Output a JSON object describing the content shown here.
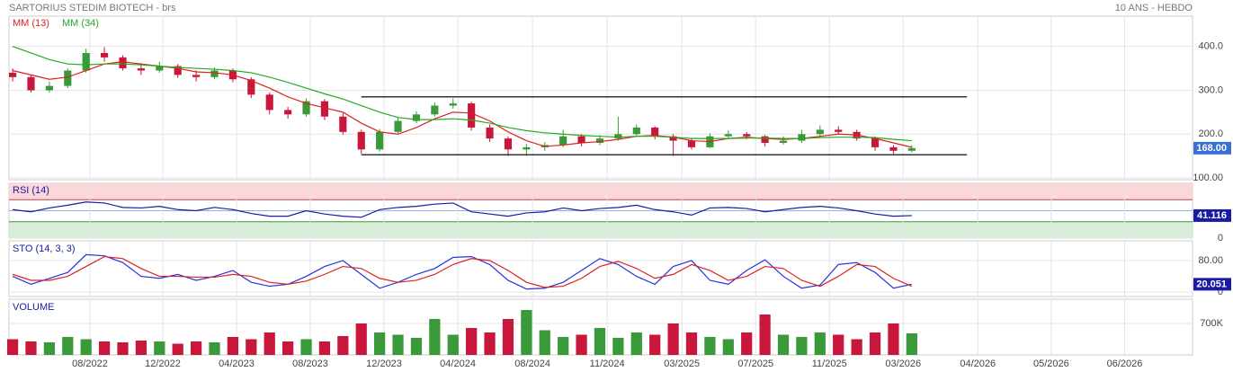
{
  "chart_data": [
    {
      "type": "candlestick",
      "title": "SARTORIUS STEDIM BIOTECH - brs",
      "subtitle": "10 ANS - HEBDO",
      "up_color": "#3a9a3a",
      "down_color": "#c8173a",
      "last_label": "168.00",
      "label_color": "#3a6fd8",
      "xlim": [
        -0.2,
        64.3
      ],
      "ylim": [
        96,
        469
      ],
      "yticks": [
        {
          "value": 400,
          "label": "400.0"
        },
        {
          "value": 300,
          "label": "300.0"
        },
        {
          "value": 200,
          "label": "200.0"
        },
        {
          "value": 100,
          "label": "100.00"
        }
      ],
      "ohlc": [
        [
          340,
          350,
          320,
          330
        ],
        [
          330,
          335,
          295,
          300
        ],
        [
          300,
          320,
          295,
          310
        ],
        [
          310,
          350,
          305,
          345
        ],
        [
          345,
          395,
          340,
          385
        ],
        [
          385,
          398,
          365,
          375
        ],
        [
          375,
          380,
          345,
          350
        ],
        [
          350,
          362,
          335,
          345
        ],
        [
          345,
          365,
          340,
          355
        ],
        [
          355,
          360,
          328,
          335
        ],
        [
          335,
          345,
          320,
          330
        ],
        [
          330,
          352,
          325,
          345
        ],
        [
          345,
          350,
          318,
          325
        ],
        [
          325,
          330,
          282,
          290
        ],
        [
          290,
          295,
          245,
          255
        ],
        [
          255,
          262,
          235,
          245
        ],
        [
          245,
          282,
          240,
          275
        ],
        [
          275,
          280,
          232,
          240
        ],
        [
          240,
          248,
          198,
          205
        ],
        [
          205,
          210,
          155,
          165
        ],
        [
          165,
          212,
          160,
          205
        ],
        [
          205,
          238,
          200,
          230
        ],
        [
          230,
          252,
          225,
          245
        ],
        [
          245,
          272,
          240,
          265
        ],
        [
          265,
          282,
          258,
          270
        ],
        [
          270,
          274,
          208,
          215
        ],
        [
          215,
          222,
          182,
          190
        ],
        [
          190,
          195,
          150,
          165
        ],
        [
          165,
          178,
          150,
          170
        ],
        [
          170,
          182,
          162,
          175
        ],
        [
          175,
          210,
          170,
          195
        ],
        [
          195,
          200,
          172,
          180
        ],
        [
          180,
          198,
          175,
          190
        ],
        [
          190,
          240,
          185,
          200
        ],
        [
          200,
          222,
          195,
          215
        ],
        [
          215,
          218,
          188,
          195
        ],
        [
          195,
          200,
          150,
          185
        ],
        [
          185,
          190,
          165,
          170
        ],
        [
          170,
          202,
          168,
          195
        ],
        [
          195,
          208,
          190,
          200
        ],
        [
          200,
          205,
          188,
          195
        ],
        [
          195,
          198,
          172,
          180
        ],
        [
          180,
          195,
          176,
          185
        ],
        [
          185,
          210,
          180,
          200
        ],
        [
          200,
          220,
          195,
          210
        ],
        [
          210,
          218,
          200,
          205
        ],
        [
          205,
          210,
          185,
          190
        ],
        [
          190,
          195,
          162,
          170
        ],
        [
          170,
          175,
          155,
          162
        ],
        [
          162,
          175,
          158,
          168
        ]
      ],
      "series": [
        {
          "name": "MM (13)",
          "color": "#e02020",
          "values": [
            345,
            335,
            325,
            330,
            345,
            360,
            365,
            360,
            355,
            350,
            342,
            340,
            335,
            322,
            305,
            285,
            270,
            260,
            250,
            225,
            205,
            200,
            215,
            235,
            250,
            248,
            230,
            205,
            185,
            172,
            175,
            180,
            183,
            188,
            195,
            197,
            193,
            185,
            183,
            190,
            193,
            190,
            188,
            190,
            195,
            200,
            198,
            190,
            180,
            170
          ]
        },
        {
          "name": "MM (34)",
          "color": "#22aa22",
          "values": [
            400,
            385,
            370,
            360,
            358,
            360,
            360,
            358,
            355,
            352,
            350,
            348,
            345,
            340,
            330,
            318,
            305,
            292,
            280,
            265,
            250,
            238,
            233,
            233,
            235,
            232,
            225,
            215,
            208,
            203,
            200,
            197,
            195,
            193,
            195,
            195,
            193,
            190,
            190,
            190,
            191,
            191,
            190,
            190,
            192,
            193,
            193,
            192,
            188,
            185
          ]
        }
      ],
      "lines": [
        {
          "color": "#333333",
          "x": [
            19,
            52
          ],
          "y": [
            285,
            285
          ]
        },
        {
          "color": "#333333",
          "x": [
            19,
            52
          ],
          "y": [
            153,
            153
          ]
        }
      ]
    },
    {
      "type": "line",
      "xlim": [
        -0.2,
        64.3
      ],
      "ylim": [
        0,
        100
      ],
      "yticks": [
        0
      ],
      "zones": [
        30,
        70
      ],
      "midline": 50,
      "series": [
        {
          "name": "RSI (14)",
          "color": "#1a1aa6",
          "values": [
            52,
            48,
            55,
            60,
            66,
            64,
            56,
            55,
            58,
            52,
            50,
            56,
            52,
            45,
            40,
            40,
            50,
            44,
            40,
            38,
            52,
            56,
            58,
            62,
            64,
            48,
            44,
            40,
            46,
            48,
            55,
            50,
            54,
            56,
            60,
            52,
            48,
            42,
            55,
            56,
            54,
            48,
            52,
            56,
            58,
            55,
            50,
            44,
            40,
            41.116
          ]
        }
      ]
    },
    {
      "type": "line",
      "title": "STO (14, 3, 3)",
      "xlim": [
        -0.2,
        64.3
      ],
      "ylim": [
        -11,
        130
      ],
      "yticks": [
        {
          "value": 80,
          "label": "80.00"
        },
        0
      ],
      "series": [
        {
          "color": "#2233dd",
          "values": [
            40,
            20,
            35,
            50,
            95,
            92,
            75,
            40,
            35,
            45,
            30,
            40,
            55,
            25,
            15,
            20,
            40,
            65,
            80,
            45,
            10,
            25,
            45,
            60,
            88,
            90,
            70,
            30,
            8,
            10,
            25,
            55,
            85,
            70,
            40,
            20,
            65,
            80,
            30,
            20,
            55,
            82,
            40,
            10,
            18,
            70,
            75,
            50,
            10,
            20.051
          ]
        },
        {
          "color": "#e02020",
          "values": [
            45,
            30,
            30,
            40,
            65,
            90,
            85,
            60,
            40,
            40,
            38,
            38,
            45,
            40,
            25,
            20,
            28,
            45,
            65,
            60,
            35,
            25,
            30,
            45,
            70,
            85,
            80,
            55,
            25,
            12,
            15,
            35,
            65,
            78,
            60,
            35,
            45,
            70,
            55,
            30,
            40,
            65,
            60,
            30,
            15,
            40,
            70,
            65,
            35,
            15
          ]
        }
      ]
    },
    {
      "type": "bar",
      "title": "VOLUME",
      "xlim": [
        -0.2,
        64.3
      ],
      "ylim": [
        0,
        1240000
      ],
      "yticks": [
        {
          "value": 700000,
          "label": "700K"
        }
      ],
      "values": [
        350000,
        300000,
        280000,
        400000,
        350000,
        300000,
        280000,
        320000,
        300000,
        250000,
        300000,
        280000,
        400000,
        350000,
        500000,
        300000,
        350000,
        300000,
        420000,
        700000,
        500000,
        450000,
        380000,
        800000,
        450000,
        600000,
        500000,
        800000,
        1000000,
        550000,
        400000,
        450000,
        600000,
        380000,
        500000,
        450000,
        700000,
        500000,
        400000,
        350000,
        500000,
        900000,
        450000,
        400000,
        500000,
        450000,
        350000,
        500000,
        700000,
        480000
      ],
      "xticks": [
        {
          "value": 4.21,
          "label": "08/2022"
        },
        {
          "value": 8.18,
          "label": "12/2022"
        },
        {
          "value": 12.2,
          "label": "04/2023"
        },
        {
          "value": 16.22,
          "label": "08/2023"
        },
        {
          "value": 20.24,
          "label": "12/2023"
        },
        {
          "value": 24.26,
          "label": "04/2024"
        },
        {
          "value": 28.33,
          "label": "08/2024"
        },
        {
          "value": 32.4,
          "label": "11/2024"
        },
        {
          "value": 36.47,
          "label": "03/2025"
        },
        {
          "value": 40.49,
          "label": "07/2025"
        },
        {
          "value": 44.51,
          "label": "11/2025"
        },
        {
          "value": 48.53,
          "label": "03/2026"
        },
        {
          "value": 52.6,
          "label": "04/2026"
        },
        {
          "value": 56.6,
          "label": "05/2026"
        },
        {
          "value": 60.6,
          "label": "06/2026"
        }
      ]
    }
  ]
}
